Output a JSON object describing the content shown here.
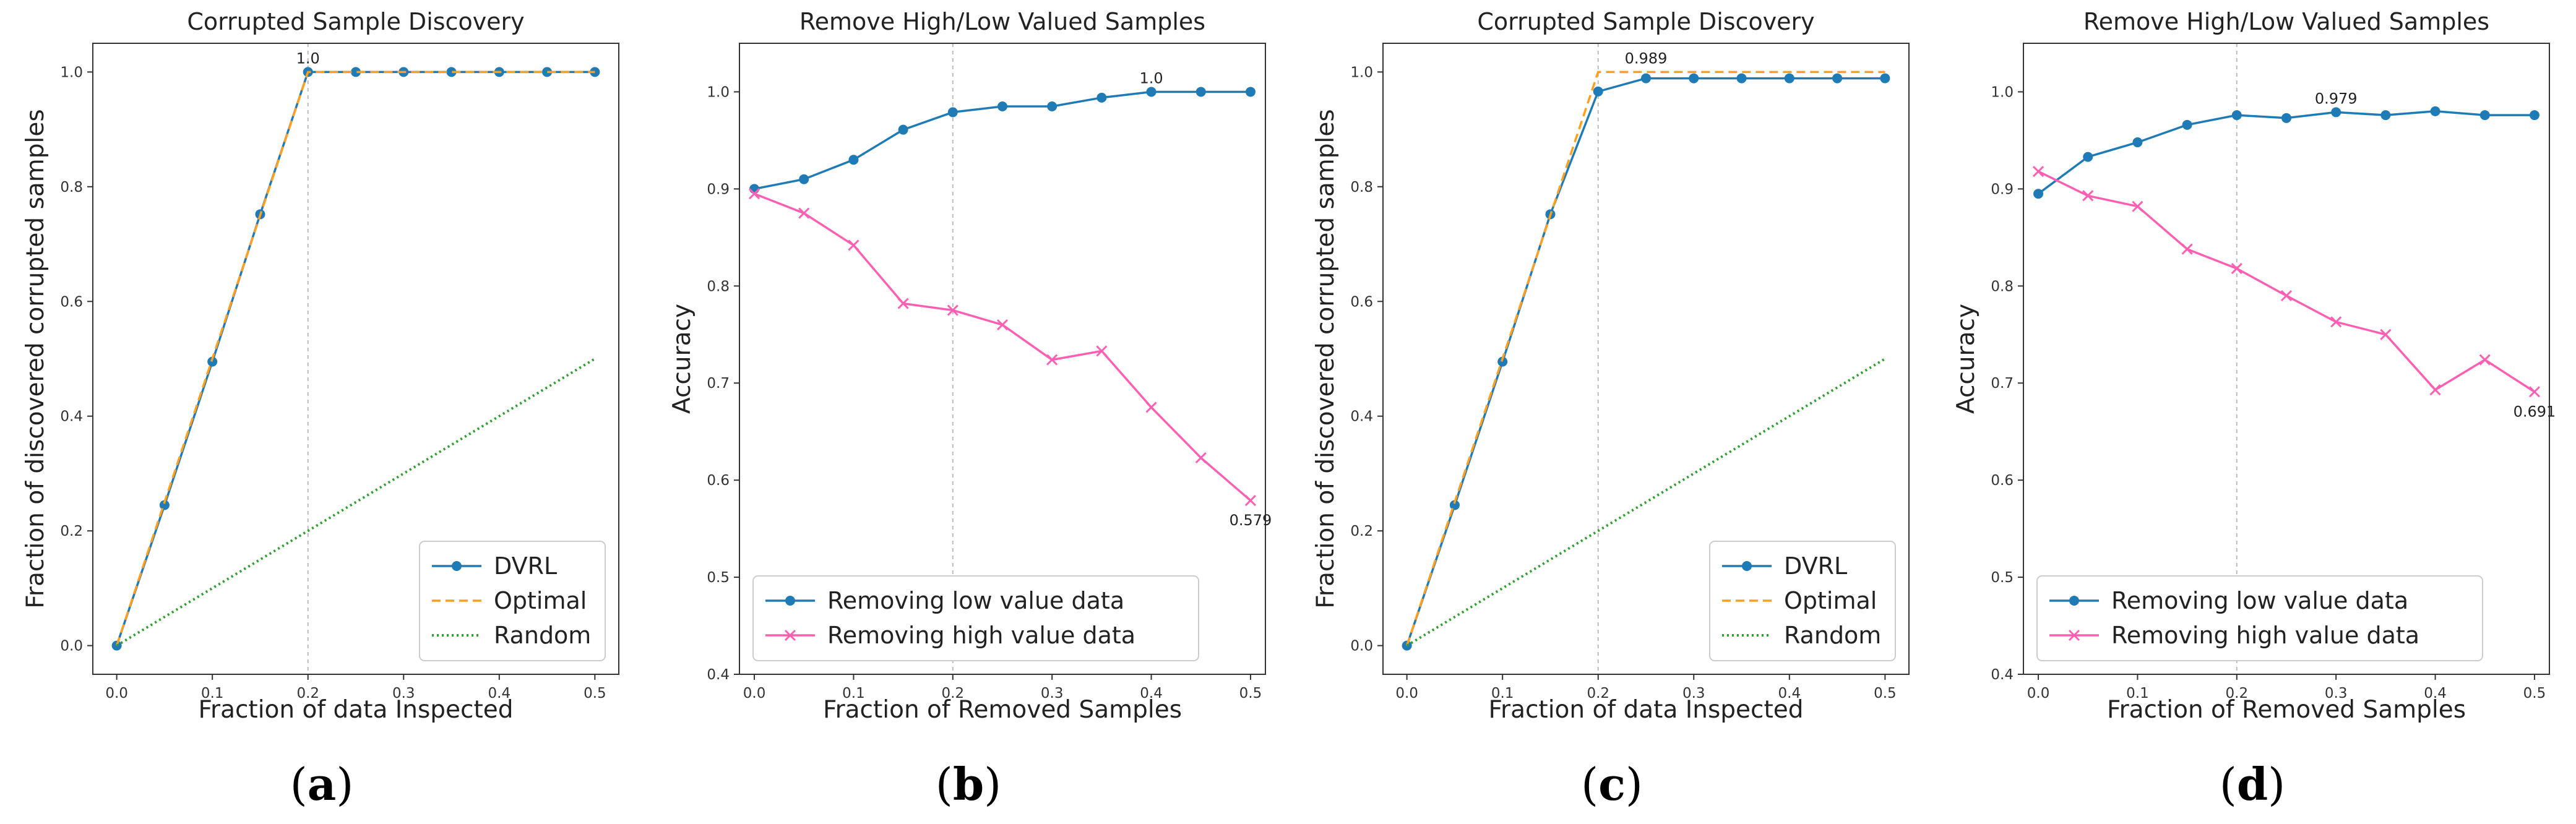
{
  "colors": {
    "dvrl": "#1f7bb6",
    "optimal": "#ff9f1c",
    "random": "#2ca02c",
    "low": "#1f7bb6",
    "high": "#ff5fb2",
    "guide": "#bbbbbb"
  },
  "chart_data": [
    {
      "type": "line",
      "panel_label": "a",
      "title": "Corrupted Sample Discovery",
      "xlabel": "Fraction of data Inspected",
      "ylabel": "Fraction of discovered corrupted samples",
      "xlim": [
        -0.025,
        0.525
      ],
      "ylim": [
        -0.05,
        1.05
      ],
      "xticks": [
        0.0,
        0.1,
        0.2,
        0.3,
        0.4,
        0.5
      ],
      "xtick_labels": [
        "0.0",
        "0.1",
        "0.2",
        "0.3",
        "0.4",
        "0.5"
      ],
      "yticks": [
        0.0,
        0.2,
        0.4,
        0.6,
        0.8,
        1.0
      ],
      "ytick_labels": [
        "0.0",
        "0.2",
        "0.4",
        "0.6",
        "0.8",
        "1.0"
      ],
      "vline": 0.2,
      "legend_position": "lower-right",
      "series": [
        {
          "name": "DVRL",
          "style": "marker-o",
          "color": "#1f7bb6",
          "x": [
            0,
            0.05,
            0.1,
            0.15,
            0.2,
            0.25,
            0.3,
            0.35,
            0.4,
            0.45,
            0.5
          ],
          "y": [
            0,
            0.245,
            0.495,
            0.752,
            1.0,
            1.0,
            1.0,
            1.0,
            1.0,
            1.0,
            1.0
          ]
        },
        {
          "name": "Optimal",
          "style": "dashed",
          "color": "#ff9f1c",
          "x": [
            0,
            0.2,
            0.5
          ],
          "y": [
            0,
            1.0,
            1.0
          ]
        },
        {
          "name": "Random",
          "style": "dotted",
          "color": "#2ca02c",
          "x": [
            0,
            0.5
          ],
          "y": [
            0,
            0.5
          ]
        }
      ],
      "annotations": [
        {
          "text": "1.0",
          "x": 0.2,
          "y": 1.0,
          "pos": "above"
        }
      ]
    },
    {
      "type": "line",
      "panel_label": "b",
      "title": "Remove High/Low Valued Samples",
      "xlabel": "Fraction of Removed Samples",
      "ylabel": "Accuracy",
      "xlim": [
        -0.015,
        0.515
      ],
      "ylim": [
        0.4,
        1.05
      ],
      "xticks": [
        0.0,
        0.1,
        0.2,
        0.3,
        0.4,
        0.5
      ],
      "xtick_labels": [
        "0.0",
        "0.1",
        "0.2",
        "0.3",
        "0.4",
        "0.5"
      ],
      "yticks": [
        0.4,
        0.5,
        0.6,
        0.7,
        0.8,
        0.9,
        1.0
      ],
      "ytick_labels": [
        "0.4",
        "0.5",
        "0.6",
        "0.7",
        "0.8",
        "0.9",
        "1.0"
      ],
      "vline": 0.2,
      "legend_position": "lower-left",
      "series": [
        {
          "name": "Removing low value data",
          "style": "marker-o",
          "color": "#1f7bb6",
          "x": [
            0,
            0.05,
            0.1,
            0.15,
            0.2,
            0.25,
            0.3,
            0.35,
            0.4,
            0.45,
            0.5
          ],
          "y": [
            0.9,
            0.91,
            0.93,
            0.961,
            0.979,
            0.985,
            0.985,
            0.994,
            1.0,
            1.0,
            1.0
          ]
        },
        {
          "name": "Removing high value data",
          "style": "marker-x",
          "color": "#ff5fb2",
          "x": [
            0,
            0.05,
            0.1,
            0.15,
            0.2,
            0.25,
            0.3,
            0.35,
            0.4,
            0.45,
            0.5
          ],
          "y": [
            0.895,
            0.875,
            0.842,
            0.782,
            0.775,
            0.76,
            0.724,
            0.733,
            0.675,
            0.623,
            0.579
          ]
        }
      ],
      "annotations": [
        {
          "text": "1.0",
          "x": 0.4,
          "y": 1.0,
          "pos": "above"
        },
        {
          "text": "0.579",
          "x": 0.5,
          "y": 0.579,
          "pos": "below"
        }
      ]
    },
    {
      "type": "line",
      "panel_label": "c",
      "title": "Corrupted Sample Discovery",
      "xlabel": "Fraction of data Inspected",
      "ylabel": "Fraction of discovered corrupted samples",
      "xlim": [
        -0.025,
        0.525
      ],
      "ylim": [
        -0.05,
        1.05
      ],
      "xticks": [
        0.0,
        0.1,
        0.2,
        0.3,
        0.4,
        0.5
      ],
      "xtick_labels": [
        "0.0",
        "0.1",
        "0.2",
        "0.3",
        "0.4",
        "0.5"
      ],
      "yticks": [
        0.0,
        0.2,
        0.4,
        0.6,
        0.8,
        1.0
      ],
      "ytick_labels": [
        "0.0",
        "0.2",
        "0.4",
        "0.6",
        "0.8",
        "1.0"
      ],
      "vline": 0.2,
      "legend_position": "lower-right",
      "series": [
        {
          "name": "DVRL",
          "style": "marker-o",
          "color": "#1f7bb6",
          "x": [
            0,
            0.05,
            0.1,
            0.15,
            0.2,
            0.25,
            0.3,
            0.35,
            0.4,
            0.45,
            0.5
          ],
          "y": [
            0,
            0.245,
            0.495,
            0.752,
            0.966,
            0.989,
            0.989,
            0.989,
            0.989,
            0.989,
            0.989
          ]
        },
        {
          "name": "Optimal",
          "style": "dashed",
          "color": "#ff9f1c",
          "x": [
            0,
            0.2,
            0.5
          ],
          "y": [
            0,
            1.0,
            1.0
          ]
        },
        {
          "name": "Random",
          "style": "dotted",
          "color": "#2ca02c",
          "x": [
            0,
            0.5
          ],
          "y": [
            0,
            0.5
          ]
        }
      ],
      "annotations": [
        {
          "text": "0.989",
          "x": 0.25,
          "y": 1.0,
          "pos": "above"
        }
      ]
    },
    {
      "type": "line",
      "panel_label": "d",
      "title": "Remove High/Low Valued Samples",
      "xlabel": "Fraction of Removed Samples",
      "ylabel": "Accuracy",
      "xlim": [
        -0.015,
        0.515
      ],
      "ylim": [
        0.4,
        1.05
      ],
      "xticks": [
        0.0,
        0.1,
        0.2,
        0.3,
        0.4,
        0.5
      ],
      "xtick_labels": [
        "0.0",
        "0.1",
        "0.2",
        "0.3",
        "0.4",
        "0.5"
      ],
      "yticks": [
        0.4,
        0.5,
        0.6,
        0.7,
        0.8,
        0.9,
        1.0
      ],
      "ytick_labels": [
        "0.4",
        "0.5",
        "0.6",
        "0.7",
        "0.8",
        "0.9",
        "1.0"
      ],
      "vline": 0.2,
      "legend_position": "lower-left",
      "series": [
        {
          "name": "Removing low value data",
          "style": "marker-o",
          "color": "#1f7bb6",
          "x": [
            0,
            0.05,
            0.1,
            0.15,
            0.2,
            0.25,
            0.3,
            0.35,
            0.4,
            0.45,
            0.5
          ],
          "y": [
            0.895,
            0.933,
            0.948,
            0.966,
            0.976,
            0.973,
            0.979,
            0.976,
            0.98,
            0.976,
            0.976
          ]
        },
        {
          "name": "Removing high value data",
          "style": "marker-x",
          "color": "#ff5fb2",
          "x": [
            0,
            0.05,
            0.1,
            0.15,
            0.2,
            0.25,
            0.3,
            0.35,
            0.4,
            0.45,
            0.5
          ],
          "y": [
            0.918,
            0.893,
            0.882,
            0.838,
            0.818,
            0.79,
            0.763,
            0.75,
            0.693,
            0.724,
            0.691
          ]
        }
      ],
      "annotations": [
        {
          "text": "0.979",
          "x": 0.3,
          "y": 0.979,
          "pos": "above"
        },
        {
          "text": "0.691",
          "x": 0.5,
          "y": 0.691,
          "pos": "below"
        }
      ]
    }
  ]
}
